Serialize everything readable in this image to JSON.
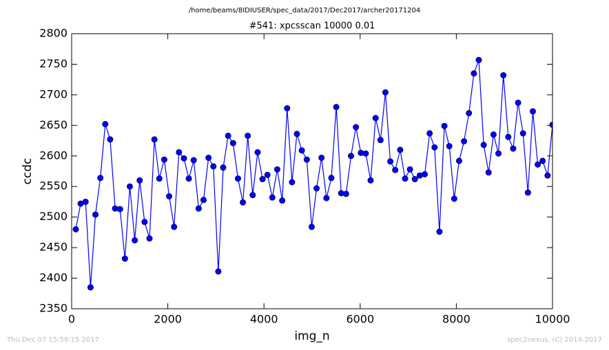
{
  "chart_data": {
    "type": "line",
    "suptitle": "/home/beams/8IDIUSER/spec_data/2017/Dec2017/archer20171204",
    "title": "#541: xpcsscan 10000 0.01",
    "xlabel": "img_n",
    "ylabel": "ccdc",
    "footer_left": "Thu Dec 07 15:59:15 2017",
    "footer_right": "spec2nexus, (C) 2014-2017",
    "color": "#0000ff",
    "grid": false,
    "xlim": [
      0,
      10000
    ],
    "xticks": [
      0,
      2000,
      4000,
      6000,
      8000,
      10000
    ],
    "ylim": [
      2350,
      2800
    ],
    "yticks": [
      2350,
      2400,
      2450,
      2500,
      2550,
      2600,
      2650,
      2700,
      2750,
      2800
    ],
    "x": [
      86,
      188,
      290,
      393,
      495,
      597,
      699,
      801,
      904,
      1006,
      1108,
      1210,
      1312,
      1415,
      1517,
      1619,
      1721,
      1823,
      1926,
      2028,
      2130,
      2232,
      2335,
      2437,
      2539,
      2641,
      2743,
      2846,
      2948,
      3050,
      3152,
      3254,
      3357,
      3459,
      3561,
      3663,
      3765,
      3868,
      3970,
      4072,
      4174,
      4276,
      4379,
      4481,
      4583,
      4685,
      4787,
      4890,
      4992,
      5094,
      5196,
      5299,
      5401,
      5503,
      5605,
      5707,
      5810,
      5912,
      6014,
      6116,
      6218,
      6321,
      6423,
      6525,
      6627,
      6729,
      6832,
      6934,
      7036,
      7138,
      7240,
      7343,
      7445,
      7547,
      7649,
      7751,
      7854,
      7956,
      8058,
      8160,
      8262,
      8365,
      8467,
      8569,
      8671,
      8773,
      8876,
      8978,
      9080,
      9182,
      9284,
      9387,
      9489,
      9591,
      9693,
      9795,
      9898,
      10000
    ],
    "values": [
      2480,
      2522,
      2525,
      2385,
      2504,
      2564,
      2652,
      2627,
      2514,
      2513,
      2432,
      2550,
      2462,
      2560,
      2492,
      2465,
      2627,
      2563,
      2594,
      2534,
      2484,
      2606,
      2596,
      2563,
      2593,
      2514,
      2528,
      2597,
      2583,
      2411,
      2581,
      2633,
      2621,
      2563,
      2524,
      2633,
      2536,
      2606,
      2562,
      2569,
      2532,
      2578,
      2527,
      2678,
      2557,
      2636,
      2609,
      2594,
      2484,
      2547,
      2597,
      2531,
      2564,
      2680,
      2539,
      2538,
      2600,
      2647,
      2605,
      2604,
      2560,
      2662,
      2626,
      2704,
      2591,
      2577,
      2610,
      2563,
      2578,
      2562,
      2568,
      2570,
      2637,
      2614,
      2476,
      2649,
      2616,
      2530,
      2592,
      2624,
      2670,
      2735,
      2757,
      2618,
      2573,
      2635,
      2604,
      2732,
      2631,
      2612,
      2687,
      2637,
      2540,
      2673,
      2586,
      2592,
      2568,
      2651
    ]
  }
}
